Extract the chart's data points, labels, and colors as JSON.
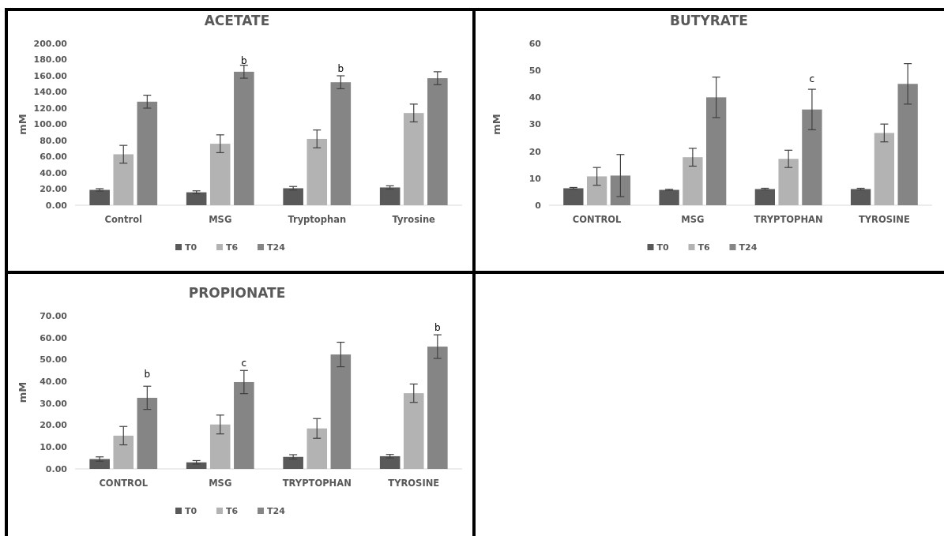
{
  "chart_data": [
    {
      "type": "bar",
      "title": "ACETATE",
      "ylabel": "mM",
      "categories": [
        "Control",
        "MSG",
        "Tryptophan",
        "Tyrosine"
      ],
      "series": [
        {
          "name": "T0",
          "color": "#595959",
          "values": [
            19,
            16,
            21,
            22
          ],
          "errors": [
            1.5,
            1.8,
            2.2,
            2
          ]
        },
        {
          "name": "T6",
          "color": "#b3b3b3",
          "values": [
            63,
            76,
            82,
            114
          ],
          "errors": [
            11,
            11,
            11,
            11
          ]
        },
        {
          "name": "T24",
          "color": "#858585",
          "values": [
            128,
            165,
            152,
            157
          ],
          "errors": [
            8,
            8,
            8,
            8
          ]
        }
      ],
      "ylim": [
        0,
        200
      ],
      "yticks": [
        {
          "value": 0,
          "label": "0.00"
        },
        {
          "value": 20,
          "label": "20.00"
        },
        {
          "value": 40,
          "label": "40.00"
        },
        {
          "value": 60,
          "label": "60.00"
        },
        {
          "value": 80,
          "label": "80.00"
        },
        {
          "value": 100,
          "label": "100.00"
        },
        {
          "value": 120,
          "label": "120.00"
        },
        {
          "value": 140,
          "label": "140.00"
        },
        {
          "value": 160,
          "label": "160.00"
        },
        {
          "value": 180,
          "label": "180.00"
        },
        {
          "value": 200,
          "label": "200.00"
        }
      ],
      "annotations": [
        "b",
        "b"
      ],
      "grid": false,
      "legend": "bottom"
    },
    {
      "type": "bar",
      "title": "BUTYRATE",
      "ylabel": "mM",
      "categories": [
        "CONTROL",
        "MSG",
        "TRYPTOPHAN",
        "TYROSINE"
      ],
      "series": [
        {
          "name": "T0",
          "color": "#595959",
          "values": [
            6.3,
            5.7,
            6,
            6
          ],
          "errors": [
            0.3,
            0.2,
            0.3,
            0.3
          ]
        },
        {
          "name": "T6",
          "color": "#b3b3b3",
          "values": [
            10.7,
            17.8,
            17.2,
            26.8
          ],
          "errors": [
            3.3,
            3.3,
            3.2,
            3.3
          ]
        },
        {
          "name": "T24",
          "color": "#858585",
          "values": [
            11,
            40,
            35.5,
            45
          ],
          "errors": [
            7.8,
            7.5,
            7.5,
            7.5
          ]
        }
      ],
      "ylim": [
        0,
        60
      ],
      "yticks": [
        0,
        10,
        20,
        30,
        40,
        50,
        60
      ],
      "annotations": [
        "c"
      ],
      "grid": false,
      "legend": "bottom"
    },
    {
      "type": "bar",
      "title": "PROPIONATE",
      "ylabel": "mM",
      "categories": [
        "CONTROL",
        "MSG",
        "TRYPTOPHAN",
        "TYROSINE"
      ],
      "series": [
        {
          "name": "T0",
          "color": "#595959",
          "values": [
            4.5,
            3,
            5.5,
            5.8
          ],
          "errors": [
            1,
            0.8,
            1,
            0.8
          ]
        },
        {
          "name": "T6",
          "color": "#b3b3b3",
          "values": [
            15.2,
            20.3,
            18.5,
            34.6
          ],
          "errors": [
            4.2,
            4.3,
            4.5,
            4.2
          ]
        },
        {
          "name": "T24",
          "color": "#858585",
          "values": [
            32.5,
            39.7,
            52.3,
            55.9
          ],
          "errors": [
            5.3,
            5.3,
            5.6,
            5.4
          ]
        }
      ],
      "ylim": [
        0,
        70
      ],
      "yticks": [
        {
          "value": 0,
          "label": "0.00"
        },
        {
          "value": 10,
          "label": "10.00"
        },
        {
          "value": 20,
          "label": "20.00"
        },
        {
          "value": 30,
          "label": "30.00"
        },
        {
          "value": 40,
          "label": "40.00"
        },
        {
          "value": 50,
          "label": "50.00"
        },
        {
          "value": 60,
          "label": "60.00"
        },
        {
          "value": 70,
          "label": "70.00"
        }
      ],
      "annotations": [
        "b",
        "c",
        "b"
      ],
      "grid": false,
      "legend": "bottom"
    }
  ]
}
